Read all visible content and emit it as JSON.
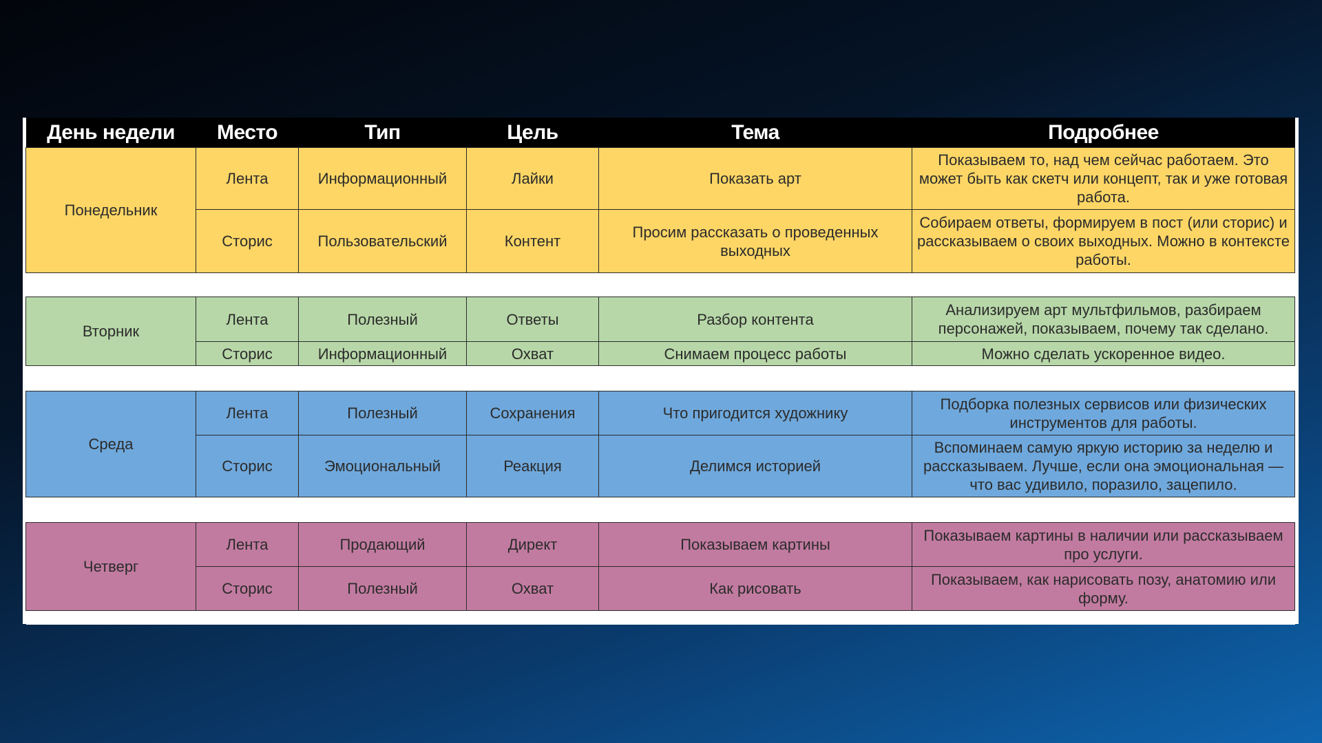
{
  "colors": {
    "monday": "#fdd665",
    "tuesday": "#b7d7a8",
    "wednesday": "#6fa8dc",
    "thursday": "#c27ba0",
    "header": "#000000"
  },
  "headers": [
    "День недели",
    "Место",
    "Тип",
    "Цель",
    "Тема",
    "Подробнее"
  ],
  "days": [
    {
      "day": "Понедельник",
      "rows": [
        {
          "place": "Лента",
          "type": "Информационный",
          "goal": "Лайки",
          "topic": "Показать арт",
          "details": "Показываем то, над чем сейчас работаем. Это может быть как скетч или концепт, так и уже готовая работа."
        },
        {
          "place": "Сторис",
          "type": "Пользовательский",
          "goal": "Контент",
          "topic": "Просим рассказать о проведенных выходных",
          "details": "Собираем ответы, формируем в пост (или сторис) и рассказываем о своих выходных. Можно в контексте работы."
        }
      ]
    },
    {
      "day": "Вторник",
      "rows": [
        {
          "place": "Лента",
          "type": "Полезный",
          "goal": "Ответы",
          "topic": "Разбор контента",
          "details": "Анализируем арт мультфильмов, разбираем персонажей, показываем, почему так сделано."
        },
        {
          "place": "Сторис",
          "type": "Информационный",
          "goal": "Охват",
          "topic": "Снимаем процесс работы",
          "details": "Можно сделать ускоренное видео."
        }
      ]
    },
    {
      "day": "Среда",
      "rows": [
        {
          "place": "Лента",
          "type": "Полезный",
          "goal": "Сохранения",
          "topic": "Что пригодится художнику",
          "details": "Подборка полезных сервисов или физических инструментов для работы."
        },
        {
          "place": "Сторис",
          "type": "Эмоциональный",
          "goal": "Реакция",
          "topic": "Делимся историей",
          "details": "Вспоминаем самую яркую историю за неделю и рассказываем. Лучше, если она эмоциональная — что вас удивило, поразило, зацепило."
        }
      ]
    },
    {
      "day": "Четверг",
      "rows": [
        {
          "place": "Лента",
          "type": "Продающий",
          "goal": "Директ",
          "topic": "Показываем картины",
          "details": "Показываем картины в наличии или рассказываем про услуги."
        },
        {
          "place": "Сторис",
          "type": "Полезный",
          "goal": "Охват",
          "topic": "Как рисовать",
          "details": "Показываем, как нарисовать позу, анатомию или форму."
        }
      ]
    }
  ]
}
